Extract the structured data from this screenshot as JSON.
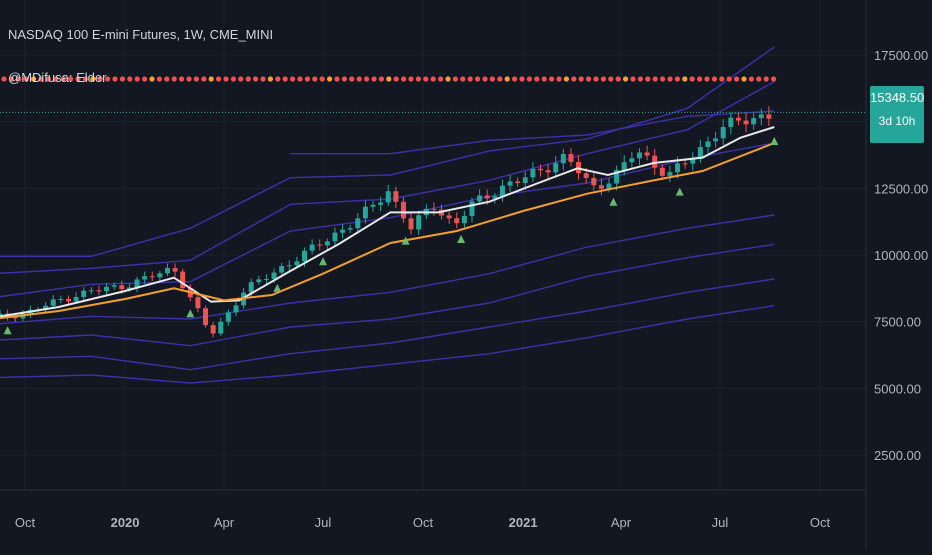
{
  "symbol_title": "NASDAQ 100 E-mini Futures, 1W, CME_MINI",
  "indicator_label": "@MDifusa: Elder",
  "last_price": "15348.50",
  "countdown": "3d 10h",
  "colors": {
    "background": "#131722",
    "up": "#26a69a",
    "down": "#ef5350",
    "fast_ema": "#e8e8e8",
    "slow_ema": "#f59f2b",
    "channel": "#3b32a8",
    "dots": "#ef5350",
    "dot_alt": "#f7a335",
    "marker": "#66bb6a"
  },
  "chart_data": {
    "type": "line",
    "title": "NASDAQ 100 E-mini Futures, 1W, CME_MINI",
    "x_axis": {
      "type": "date",
      "range": [
        "2019-09-01",
        "2021-11-07"
      ],
      "tick_labels": [
        {
          "label": "Oct",
          "date": "2019-10-01"
        },
        {
          "label": "2020",
          "date": "2020-01-01"
        },
        {
          "label": "Apr",
          "date": "2020-04-01"
        },
        {
          "label": "Jul",
          "date": "2020-07-01"
        },
        {
          "label": "Oct",
          "date": "2020-10-01"
        },
        {
          "label": "2021",
          "date": "2021-01-01"
        },
        {
          "label": "Apr",
          "date": "2021-04-01"
        },
        {
          "label": "Jul",
          "date": "2021-07-01"
        },
        {
          "label": "Oct",
          "date": "2021-10-01"
        }
      ]
    },
    "y_axis": {
      "scale": "linear",
      "range": [
        1000,
        19000
      ],
      "tick_labels": [
        "2500.00",
        "5000.00",
        "7500.00",
        "10000.00",
        "12500.00",
        "17500.00"
      ],
      "tick_values": [
        2500,
        5000,
        7500,
        10000,
        12500,
        17500
      ]
    },
    "grid": true,
    "last_price": 15348.5,
    "price_series": [
      {
        "date": "2019-09-01",
        "value": 7650
      },
      {
        "date": "2019-10-01",
        "value": 7800
      },
      {
        "date": "2019-11-01",
        "value": 8300
      },
      {
        "date": "2019-12-01",
        "value": 8650
      },
      {
        "date": "2020-01-01",
        "value": 8850
      },
      {
        "date": "2020-02-15",
        "value": 9500
      },
      {
        "date": "2020-03-01",
        "value": 8400
      },
      {
        "date": "2020-03-20",
        "value": 7000
      },
      {
        "date": "2020-04-01",
        "value": 7600
      },
      {
        "date": "2020-04-20",
        "value": 8700
      },
      {
        "date": "2020-05-15",
        "value": 9300
      },
      {
        "date": "2020-06-10",
        "value": 9950
      },
      {
        "date": "2020-07-01",
        "value": 10500
      },
      {
        "date": "2020-08-01",
        "value": 11300
      },
      {
        "date": "2020-08-30",
        "value": 12400
      },
      {
        "date": "2020-09-20",
        "value": 11000
      },
      {
        "date": "2020-10-10",
        "value": 11900
      },
      {
        "date": "2020-10-30",
        "value": 11100
      },
      {
        "date": "2020-11-15",
        "value": 11900
      },
      {
        "date": "2020-12-15",
        "value": 12600
      },
      {
        "date": "2021-01-01",
        "value": 12850
      },
      {
        "date": "2021-02-10",
        "value": 13700
      },
      {
        "date": "2021-03-05",
        "value": 12500
      },
      {
        "date": "2021-03-25",
        "value": 12900
      },
      {
        "date": "2021-04-15",
        "value": 13900
      },
      {
        "date": "2021-05-15",
        "value": 13000
      },
      {
        "date": "2021-06-10",
        "value": 13800
      },
      {
        "date": "2021-07-01",
        "value": 14800
      },
      {
        "date": "2021-07-31",
        "value": 15100
      },
      {
        "date": "2021-08-20",
        "value": 15350
      }
    ],
    "series": [
      {
        "values": [
          {
            "date": "2019-09-01",
            "value": 7650
          },
          {
            "date": "2019-11-01",
            "value": 8050
          },
          {
            "date": "2020-01-01",
            "value": 8650
          },
          {
            "date": "2020-02-15",
            "value": 9150
          },
          {
            "date": "2020-03-20",
            "value": 8250
          },
          {
            "date": "2020-04-15",
            "value": 8300
          },
          {
            "date": "2020-06-01",
            "value": 9400
          },
          {
            "date": "2020-07-15",
            "value": 10400
          },
          {
            "date": "2020-09-01",
            "value": 11600
          },
          {
            "date": "2020-10-15",
            "value": 11600
          },
          {
            "date": "2020-12-01",
            "value": 12000
          },
          {
            "date": "2021-01-15",
            "value": 12700
          },
          {
            "date": "2021-02-20",
            "value": 13250
          },
          {
            "date": "2021-03-20",
            "value": 13000
          },
          {
            "date": "2021-05-01",
            "value": 13450
          },
          {
            "date": "2021-06-15",
            "value": 13650
          },
          {
            "date": "2021-07-20",
            "value": 14400
          },
          {
            "date": "2021-08-20",
            "value": 14800
          }
        ]
      },
      {
        "values": [
          {
            "date": "2019-09-01",
            "value": 7600
          },
          {
            "date": "2019-11-01",
            "value": 7900
          },
          {
            "date": "2020-01-01",
            "value": 8350
          },
          {
            "date": "2020-02-15",
            "value": 8750
          },
          {
            "date": "2020-04-01",
            "value": 8300
          },
          {
            "date": "2020-05-15",
            "value": 8500
          },
          {
            "date": "2020-07-01",
            "value": 9300
          },
          {
            "date": "2020-09-01",
            "value": 10450
          },
          {
            "date": "2020-11-01",
            "value": 10900
          },
          {
            "date": "2021-01-01",
            "value": 11650
          },
          {
            "date": "2021-03-01",
            "value": 12300
          },
          {
            "date": "2021-05-01",
            "value": 12800
          },
          {
            "date": "2021-06-15",
            "value": 13150
          },
          {
            "date": "2021-08-20",
            "value": 14200
          }
        ]
      }
    ],
    "channel_lines": [
      {
        "values": [
          {
            "date": "2020-06-01",
            "value": 13800
          },
          {
            "date": "2020-09-01",
            "value": 13800
          },
          {
            "date": "2020-12-01",
            "value": 14300
          },
          {
            "date": "2021-03-01",
            "value": 14500
          },
          {
            "date": "2021-06-01",
            "value": 15200
          },
          {
            "date": "2021-08-20",
            "value": 15400
          }
        ]
      },
      {
        "values": [
          {
            "date": "2019-09-01",
            "value": 9950
          },
          {
            "date": "2019-12-01",
            "value": 9950
          },
          {
            "date": "2020-03-01",
            "value": 11000
          },
          {
            "date": "2020-06-01",
            "value": 12900
          },
          {
            "date": "2020-09-01",
            "value": 13000
          },
          {
            "date": "2020-12-01",
            "value": 13900
          },
          {
            "date": "2021-03-01",
            "value": 14350
          },
          {
            "date": "2021-06-01",
            "value": 15500
          },
          {
            "date": "2021-08-20",
            "value": 17800
          }
        ]
      },
      {
        "values": [
          {
            "date": "2019-09-01",
            "value": 9300
          },
          {
            "date": "2019-12-01",
            "value": 9500
          },
          {
            "date": "2020-03-01",
            "value": 9800
          },
          {
            "date": "2020-06-01",
            "value": 11900
          },
          {
            "date": "2020-09-01",
            "value": 12100
          },
          {
            "date": "2020-12-01",
            "value": 12800
          },
          {
            "date": "2021-03-01",
            "value": 13800
          },
          {
            "date": "2021-06-01",
            "value": 14700
          },
          {
            "date": "2021-08-20",
            "value": 16500
          }
        ]
      },
      {
        "values": [
          {
            "date": "2019-09-01",
            "value": 8400
          },
          {
            "date": "2019-12-01",
            "value": 8900
          },
          {
            "date": "2020-03-01",
            "value": 9000
          },
          {
            "date": "2020-06-01",
            "value": 10900
          },
          {
            "date": "2020-09-01",
            "value": 11400
          },
          {
            "date": "2020-12-01",
            "value": 12200
          },
          {
            "date": "2021-03-01",
            "value": 12700
          },
          {
            "date": "2021-06-01",
            "value": 13600
          },
          {
            "date": "2021-08-20",
            "value": 14200
          }
        ]
      },
      {
        "values": [
          {
            "date": "2019-09-01",
            "value": 7400
          },
          {
            "date": "2019-12-01",
            "value": 7700
          },
          {
            "date": "2020-03-01",
            "value": 7600
          },
          {
            "date": "2020-06-01",
            "value": 8200
          },
          {
            "date": "2020-09-01",
            "value": 8600
          },
          {
            "date": "2020-12-01",
            "value": 9300
          },
          {
            "date": "2021-03-01",
            "value": 10300
          },
          {
            "date": "2021-06-01",
            "value": 11000
          },
          {
            "date": "2021-08-20",
            "value": 11500
          }
        ]
      },
      {
        "values": [
          {
            "date": "2019-09-01",
            "value": 6800
          },
          {
            "date": "2019-12-01",
            "value": 7000
          },
          {
            "date": "2020-03-01",
            "value": 6600
          },
          {
            "date": "2020-06-01",
            "value": 7300
          },
          {
            "date": "2020-09-01",
            "value": 7600
          },
          {
            "date": "2020-12-01",
            "value": 8200
          },
          {
            "date": "2021-03-01",
            "value": 9200
          },
          {
            "date": "2021-06-01",
            "value": 9900
          },
          {
            "date": "2021-08-20",
            "value": 10400
          }
        ]
      },
      {
        "values": [
          {
            "date": "2019-09-01",
            "value": 6100
          },
          {
            "date": "2019-12-01",
            "value": 6200
          },
          {
            "date": "2020-03-01",
            "value": 5700
          },
          {
            "date": "2020-06-01",
            "value": 6300
          },
          {
            "date": "2020-09-01",
            "value": 6700
          },
          {
            "date": "2020-12-01",
            "value": 7300
          },
          {
            "date": "2021-03-01",
            "value": 7900
          },
          {
            "date": "2021-06-01",
            "value": 8600
          },
          {
            "date": "2021-08-20",
            "value": 9100
          }
        ]
      },
      {
        "values": [
          {
            "date": "2019-09-01",
            "value": 5400
          },
          {
            "date": "2019-12-01",
            "value": 5500
          },
          {
            "date": "2020-03-01",
            "value": 5200
          },
          {
            "date": "2020-06-01",
            "value": 5500
          },
          {
            "date": "2020-09-01",
            "value": 5900
          },
          {
            "date": "2020-12-01",
            "value": 6300
          },
          {
            "date": "2021-03-01",
            "value": 6900
          },
          {
            "date": "2021-06-01",
            "value": 7600
          },
          {
            "date": "2021-08-20",
            "value": 8100
          }
        ]
      }
    ],
    "signal_dots": {
      "value": 16600,
      "alt_every": 8
    },
    "up_markers": [
      "2019-09-15",
      "2020-03-01",
      "2020-05-20",
      "2020-07-01",
      "2020-09-15",
      "2020-11-05",
      "2021-03-25",
      "2021-05-25",
      "2021-08-20"
    ]
  }
}
